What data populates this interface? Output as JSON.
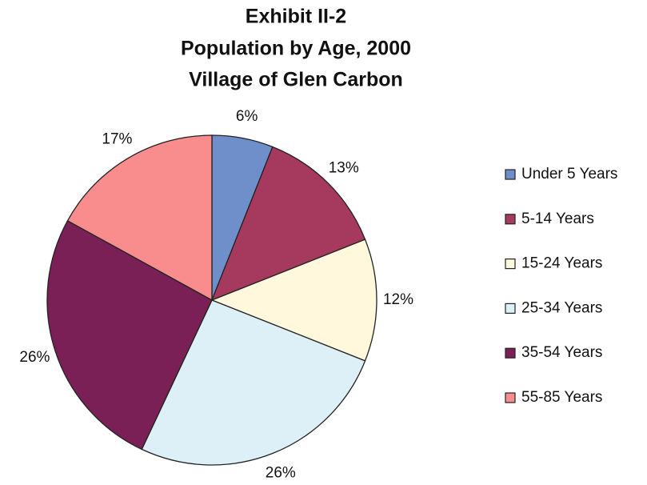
{
  "chart_data": {
    "type": "pie",
    "title": [
      "Exhibit II-2",
      "Population by Age, 2000",
      "Village of Glen Carbon"
    ],
    "categories": [
      "Under 5 Years",
      "5-14 Years",
      "15-24 Years",
      "25-34 Years",
      "35-54 Years",
      "55-85 Years"
    ],
    "values": [
      6,
      13,
      12,
      26,
      26,
      17
    ],
    "value_labels": [
      "6%",
      "13%",
      "12%",
      "26%",
      "26%",
      "17%"
    ],
    "colors": [
      "#6f8fcb",
      "#a53a5e",
      "#fff8dc",
      "#ddf0f8",
      "#7b1f57",
      "#f98c8c"
    ],
    "legend": "right"
  }
}
